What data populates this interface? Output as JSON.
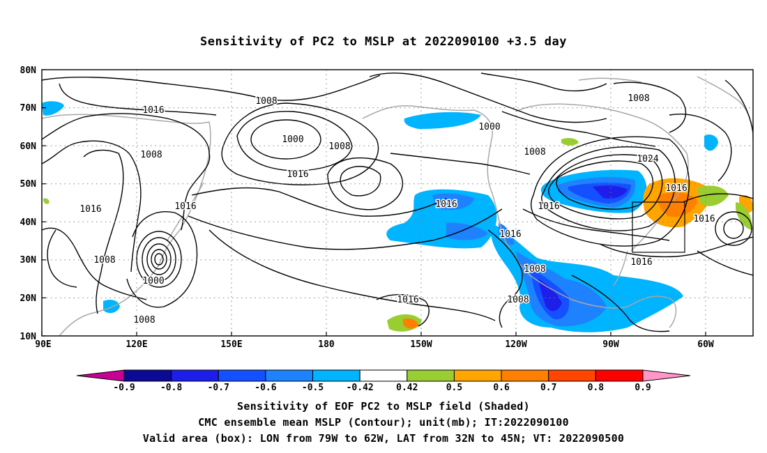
{
  "title": "Sensitivity of PC2 to MSLP at 2022090100 +3.5 day",
  "lat_labels": [
    "80N",
    "70N",
    "60N",
    "50N",
    "40N",
    "30N",
    "20N",
    "10N"
  ],
  "lon_labels": [
    "90E",
    "120E",
    "150E",
    "180",
    "150W",
    "120W",
    "90W",
    "60W"
  ],
  "contour_labels": [
    {
      "text": "1008"
    },
    {
      "text": "1016"
    },
    {
      "text": "1000"
    },
    {
      "text": "1008"
    },
    {
      "text": "1000"
    },
    {
      "text": "1008"
    },
    {
      "text": "1008"
    },
    {
      "text": "1008"
    },
    {
      "text": "1016"
    },
    {
      "text": "1016"
    },
    {
      "text": "1016"
    },
    {
      "text": "1016"
    },
    {
      "text": "1016"
    },
    {
      "text": "1016"
    },
    {
      "text": "1024"
    },
    {
      "text": "1016"
    },
    {
      "text": "1016"
    },
    {
      "text": "1016"
    },
    {
      "text": "1008"
    },
    {
      "text": "1000"
    },
    {
      "text": "1008"
    },
    {
      "text": "1016"
    },
    {
      "text": "1008"
    },
    {
      "text": "1008"
    }
  ],
  "colorbar": {
    "labels": [
      "-0.9",
      "-0.8",
      "-0.7",
      "-0.6",
      "-0.5",
      "-0.42",
      "0.42",
      "0.5",
      "0.6",
      "0.7",
      "0.8",
      "0.9"
    ],
    "colors": [
      "#0a0a96",
      "#1e1eea",
      "#1450ff",
      "#1e82ff",
      "#00b4ff",
      "#ffffff",
      "#9acd32",
      "#ffa500",
      "#ff7f00",
      "#ff4500",
      "#ff0000"
    ],
    "low_end": "#c80096",
    "high_end": "#ff96c8"
  },
  "valid_box": {
    "lon": [
      -79,
      -62
    ],
    "lat": [
      32,
      45
    ]
  },
  "captions": {
    "line1": "Sensitivity of EOF PC2 to MSLP field (Shaded)",
    "line2": "CMC ensemble mean MSLP (Contour); unit(mb); IT:2022090100",
    "line3": "Valid area (box): LON from 79W to 62W, LAT from 32N to 45N; VT: 2022090500"
  }
}
